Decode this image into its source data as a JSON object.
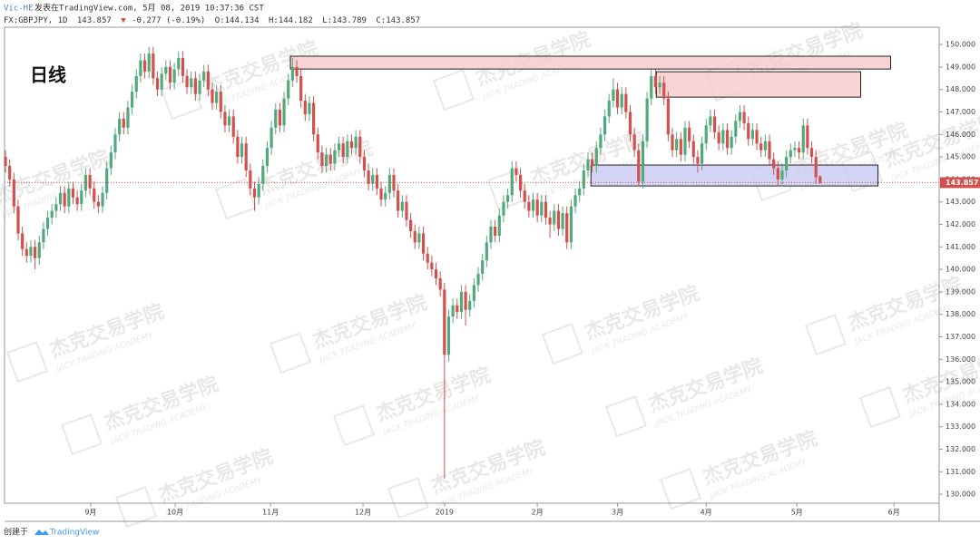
{
  "chart_data": {
    "type": "candlestick",
    "author": "Vic-HE",
    "published": "发表在TradingView.com, 5月 08, 2019 10:37:36 CST",
    "symbol": "FX:GBPJPY, 1D",
    "last_text": "143.857",
    "change_arrow": "▼",
    "change": "-0.277 (-0.19%)",
    "ohlc_text": [
      "O:144.134",
      "H:144.182",
      "L:143.789",
      "C:143.857"
    ],
    "annotation": "日线",
    "watermark": [
      "杰克交易学院",
      "JACK TRADING ACADEMY"
    ],
    "footer": "创建于",
    "footer_brand": "TradingView",
    "up_color": "#53a97c",
    "down_color": "#d2504d",
    "grid": false,
    "last_price": {
      "value": 143.857,
      "label": "143.857"
    },
    "xlim": [
      -1.3,
      221.2
    ],
    "ylim": [
      129.6,
      150.77
    ],
    "xticks": [
      {
        "value": 20.2,
        "label": "9月"
      },
      {
        "value": 40.2,
        "label": "10月"
      },
      {
        "value": 62.8,
        "label": "11月"
      },
      {
        "value": 84.7,
        "label": "12月"
      },
      {
        "value": 104,
        "label": "2019"
      },
      {
        "value": 126,
        "label": "2月"
      },
      {
        "value": 145,
        "label": "3月"
      },
      {
        "value": 166,
        "label": "4月"
      },
      {
        "value": 187.5,
        "label": "5月"
      },
      {
        "value": 210.5,
        "label": "6月"
      }
    ],
    "yticks": [
      {
        "value": 130,
        "label": "130.000"
      },
      {
        "value": 131,
        "label": "131.000"
      },
      {
        "value": 132,
        "label": "132.000"
      },
      {
        "value": 133,
        "label": "133.000"
      },
      {
        "value": 134,
        "label": "134.000"
      },
      {
        "value": 135,
        "label": "135.000"
      },
      {
        "value": 136,
        "label": "136.000"
      },
      {
        "value": 137,
        "label": "137.000"
      },
      {
        "value": 138,
        "label": "138.000"
      },
      {
        "value": 139,
        "label": "139.000"
      },
      {
        "value": 140,
        "label": "140.000"
      },
      {
        "value": 141,
        "label": "141.000"
      },
      {
        "value": 142,
        "label": "142.000"
      },
      {
        "value": 143,
        "label": "143.000"
      },
      {
        "value": 144,
        "label": "144.000"
      },
      {
        "value": 145,
        "label": "145.000"
      },
      {
        "value": 146,
        "label": "146.000"
      },
      {
        "value": 147,
        "label": "147.000"
      },
      {
        "value": 148,
        "label": "148.000"
      },
      {
        "value": 149,
        "label": "149.000"
      },
      {
        "value": 150,
        "label": "150.000"
      }
    ],
    "zones": [
      {
        "x": [
          67.5,
          209.7
        ],
        "y": [
          148.91,
          149.48
        ],
        "color": "#f9c9c9"
      },
      {
        "x": [
          154.2,
          202.6
        ],
        "y": [
          147.66,
          148.79
        ],
        "color": "#f9c9c9"
      },
      {
        "x": [
          138.7,
          206.7
        ],
        "y": [
          143.71,
          144.64
        ],
        "color": "#c9c9f5"
      }
    ],
    "ohlc": [
      [
        145.0,
        145.3,
        144.3,
        144.6
      ],
      [
        144.6,
        144.9,
        143.7,
        144.0
      ],
      [
        144.0,
        144.3,
        142.5,
        142.8
      ],
      [
        142.8,
        143.1,
        141.3,
        141.6
      ],
      [
        141.6,
        141.9,
        140.6,
        140.9
      ],
      [
        140.9,
        141.2,
        140.3,
        140.6
      ],
      [
        140.6,
        141.3,
        140.3,
        141.0
      ],
      [
        141.0,
        141.3,
        140.0,
        140.5
      ],
      [
        140.5,
        141.5,
        140.2,
        141.2
      ],
      [
        141.2,
        142.1,
        140.9,
        141.8
      ],
      [
        141.8,
        142.6,
        141.5,
        142.3
      ],
      [
        142.3,
        142.9,
        142.0,
        142.6
      ],
      [
        142.6,
        143.2,
        142.3,
        142.9
      ],
      [
        142.9,
        143.7,
        142.6,
        143.4
      ],
      [
        143.4,
        143.7,
        142.5,
        142.8
      ],
      [
        142.8,
        143.9,
        142.5,
        143.6
      ],
      [
        143.6,
        143.9,
        142.9,
        143.2
      ],
      [
        143.2,
        143.5,
        142.6,
        142.9
      ],
      [
        142.9,
        143.8,
        142.6,
        143.5
      ],
      [
        143.5,
        144.5,
        143.2,
        144.2
      ],
      [
        144.2,
        144.5,
        143.3,
        143.6
      ],
      [
        143.6,
        143.9,
        142.7,
        143.0
      ],
      [
        143.0,
        143.3,
        142.5,
        142.8
      ],
      [
        142.8,
        143.7,
        142.5,
        143.4
      ],
      [
        143.4,
        144.8,
        143.1,
        144.5
      ],
      [
        144.5,
        145.5,
        144.2,
        145.2
      ],
      [
        145.2,
        146.3,
        144.9,
        146.0
      ],
      [
        146.0,
        147.0,
        145.7,
        146.7
      ],
      [
        146.7,
        147.0,
        146.0,
        146.3
      ],
      [
        146.3,
        147.5,
        146.0,
        147.2
      ],
      [
        147.2,
        148.2,
        146.9,
        147.9
      ],
      [
        147.9,
        148.9,
        147.6,
        148.6
      ],
      [
        148.6,
        149.6,
        148.3,
        149.3
      ],
      [
        149.3,
        149.6,
        148.5,
        148.8
      ],
      [
        148.8,
        149.9,
        148.5,
        149.6
      ],
      [
        149.6,
        149.9,
        148.2,
        148.5
      ],
      [
        148.5,
        148.8,
        147.7,
        148.0
      ],
      [
        148.0,
        149.0,
        147.7,
        148.7
      ],
      [
        148.7,
        149.3,
        148.4,
        149.0
      ],
      [
        149.0,
        149.3,
        148.0,
        148.3
      ],
      [
        148.3,
        149.2,
        148.0,
        148.9
      ],
      [
        148.9,
        149.7,
        148.6,
        149.4
      ],
      [
        149.4,
        149.7,
        148.3,
        148.6
      ],
      [
        148.6,
        148.9,
        147.8,
        148.1
      ],
      [
        148.1,
        148.8,
        147.8,
        148.5
      ],
      [
        148.5,
        148.8,
        147.5,
        147.8
      ],
      [
        147.8,
        148.7,
        147.5,
        148.4
      ],
      [
        148.4,
        149.1,
        148.1,
        148.8
      ],
      [
        148.8,
        149.1,
        147.7,
        148.0
      ],
      [
        148.0,
        148.3,
        147.1,
        147.4
      ],
      [
        147.4,
        148.2,
        147.1,
        147.9
      ],
      [
        147.9,
        148.2,
        146.7,
        147.0
      ],
      [
        147.0,
        147.3,
        146.1,
        146.4
      ],
      [
        146.4,
        147.1,
        146.1,
        146.8
      ],
      [
        146.8,
        147.1,
        145.6,
        145.9
      ],
      [
        145.9,
        146.2,
        144.7,
        145.0
      ],
      [
        145.0,
        145.9,
        144.7,
        145.6
      ],
      [
        145.6,
        145.9,
        144.1,
        144.4
      ],
      [
        144.4,
        144.7,
        143.3,
        143.6
      ],
      [
        143.6,
        143.9,
        142.6,
        143.2
      ],
      [
        143.2,
        144.1,
        142.9,
        143.8
      ],
      [
        143.8,
        144.9,
        143.5,
        144.6
      ],
      [
        144.6,
        145.7,
        144.3,
        145.4
      ],
      [
        145.4,
        146.6,
        145.1,
        146.3
      ],
      [
        146.3,
        147.4,
        146.0,
        147.1
      ],
      [
        147.1,
        147.4,
        146.1,
        146.4
      ],
      [
        146.4,
        147.9,
        146.1,
        147.6
      ],
      [
        147.6,
        148.7,
        147.3,
        148.4
      ],
      [
        148.4,
        149.4,
        148.1,
        149.0
      ],
      [
        149.0,
        149.3,
        148.3,
        148.6
      ],
      [
        148.6,
        148.9,
        147.2,
        147.5
      ],
      [
        147.5,
        147.8,
        146.6,
        146.9
      ],
      [
        146.9,
        147.7,
        146.6,
        147.4
      ],
      [
        147.4,
        147.7,
        145.7,
        146.0
      ],
      [
        146.0,
        146.3,
        144.9,
        145.2
      ],
      [
        145.2,
        145.5,
        144.3,
        144.6
      ],
      [
        144.6,
        145.4,
        144.3,
        145.1
      ],
      [
        145.1,
        145.4,
        144.4,
        144.7
      ],
      [
        144.7,
        145.6,
        144.4,
        145.3
      ],
      [
        145.3,
        145.9,
        145.0,
        145.6
      ],
      [
        145.6,
        145.9,
        144.7,
        145.0
      ],
      [
        145.0,
        146.0,
        144.7,
        145.7
      ],
      [
        145.7,
        146.0,
        145.1,
        145.4
      ],
      [
        145.4,
        146.2,
        145.1,
        145.9
      ],
      [
        145.9,
        146.2,
        144.7,
        145.0
      ],
      [
        145.0,
        145.3,
        144.1,
        144.4
      ],
      [
        144.4,
        144.7,
        143.5,
        143.8
      ],
      [
        143.8,
        144.5,
        143.5,
        144.2
      ],
      [
        144.2,
        144.5,
        143.3,
        143.6
      ],
      [
        143.6,
        143.9,
        142.8,
        143.1
      ],
      [
        143.1,
        143.7,
        142.8,
        143.4
      ],
      [
        143.4,
        144.5,
        143.1,
        144.2
      ],
      [
        144.2,
        144.5,
        143.2,
        143.5
      ],
      [
        143.5,
        143.8,
        142.3,
        142.6
      ],
      [
        142.6,
        143.3,
        142.3,
        143.0
      ],
      [
        143.0,
        143.3,
        141.9,
        142.2
      ],
      [
        142.2,
        142.5,
        141.4,
        141.7
      ],
      [
        141.7,
        142.0,
        140.9,
        141.2
      ],
      [
        141.2,
        141.9,
        140.9,
        141.6
      ],
      [
        141.6,
        141.9,
        140.4,
        140.7
      ],
      [
        140.7,
        141.0,
        140.0,
        140.3
      ],
      [
        140.3,
        140.6,
        139.7,
        140.0
      ],
      [
        140.0,
        140.3,
        139.3,
        139.6
      ],
      [
        139.6,
        139.9,
        138.8,
        139.1
      ],
      [
        139.1,
        139.4,
        130.7,
        136.2
      ],
      [
        136.2,
        138.2,
        135.9,
        137.9
      ],
      [
        137.9,
        138.7,
        137.6,
        138.4
      ],
      [
        138.4,
        138.7,
        137.8,
        138.1
      ],
      [
        138.1,
        139.3,
        137.8,
        139.0
      ],
      [
        139.0,
        139.3,
        137.5,
        138.2
      ],
      [
        138.2,
        138.9,
        137.9,
        138.6
      ],
      [
        138.6,
        139.6,
        138.3,
        139.3
      ],
      [
        139.3,
        140.1,
        139.0,
        139.8
      ],
      [
        139.8,
        140.7,
        139.5,
        140.4
      ],
      [
        140.4,
        141.5,
        140.1,
        141.2
      ],
      [
        141.2,
        142.2,
        140.9,
        141.9
      ],
      [
        141.9,
        142.2,
        141.2,
        141.5
      ],
      [
        141.5,
        142.7,
        141.2,
        142.4
      ],
      [
        142.4,
        143.3,
        142.1,
        143.0
      ],
      [
        143.0,
        143.6,
        142.7,
        143.3
      ],
      [
        143.3,
        144.8,
        143.0,
        144.5
      ],
      [
        144.5,
        144.8,
        143.9,
        144.2
      ],
      [
        144.2,
        144.5,
        143.2,
        143.5
      ],
      [
        143.5,
        143.8,
        142.7,
        143.0
      ],
      [
        143.0,
        143.3,
        142.3,
        142.6
      ],
      [
        142.6,
        143.4,
        142.3,
        143.1
      ],
      [
        143.1,
        143.4,
        142.1,
        142.4
      ],
      [
        142.4,
        143.3,
        142.1,
        143.0
      ],
      [
        143.0,
        143.3,
        142.0,
        142.3
      ],
      [
        142.3,
        142.6,
        141.4,
        142.0
      ],
      [
        142.0,
        142.9,
        141.7,
        142.6
      ],
      [
        142.6,
        142.9,
        141.5,
        141.8
      ],
      [
        141.8,
        142.8,
        141.5,
        142.5
      ],
      [
        142.5,
        142.8,
        140.9,
        141.2
      ],
      [
        141.2,
        143.1,
        140.9,
        142.8
      ],
      [
        142.8,
        143.6,
        142.5,
        143.3
      ],
      [
        143.3,
        143.9,
        143.0,
        143.6
      ],
      [
        143.6,
        144.7,
        143.3,
        144.4
      ],
      [
        144.4,
        145.2,
        144.1,
        144.9
      ],
      [
        144.9,
        145.2,
        144.3,
        144.6
      ],
      [
        144.6,
        145.7,
        144.3,
        145.4
      ],
      [
        145.4,
        146.3,
        145.1,
        146.0
      ],
      [
        146.0,
        147.1,
        145.7,
        146.8
      ],
      [
        146.8,
        147.8,
        146.5,
        147.5
      ],
      [
        147.5,
        148.5,
        147.2,
        148.0
      ],
      [
        148.0,
        148.3,
        146.9,
        147.2
      ],
      [
        147.2,
        148.1,
        146.9,
        147.8
      ],
      [
        147.8,
        148.1,
        146.7,
        147.0
      ],
      [
        147.0,
        147.3,
        145.7,
        146.0
      ],
      [
        146.0,
        146.3,
        145.0,
        145.3
      ],
      [
        145.3,
        145.6,
        143.7,
        143.9
      ],
      [
        143.9,
        146.0,
        143.6,
        145.7
      ],
      [
        145.7,
        147.9,
        145.4,
        147.6
      ],
      [
        147.6,
        148.9,
        147.3,
        148.6
      ],
      [
        148.6,
        148.9,
        147.8,
        148.1
      ],
      [
        148.1,
        148.6,
        147.8,
        148.3
      ],
      [
        148.3,
        148.6,
        147.3,
        147.6
      ],
      [
        147.6,
        147.9,
        145.7,
        146.0
      ],
      [
        146.0,
        146.3,
        145.0,
        145.3
      ],
      [
        145.3,
        146.1,
        145.0,
        145.8
      ],
      [
        145.8,
        146.1,
        144.8,
        145.1
      ],
      [
        145.1,
        146.6,
        144.8,
        146.3
      ],
      [
        146.3,
        146.6,
        145.4,
        145.7
      ],
      [
        145.7,
        146.0,
        144.7,
        145.0
      ],
      [
        145.0,
        145.3,
        144.3,
        144.7
      ],
      [
        144.7,
        145.9,
        144.4,
        145.6
      ],
      [
        145.6,
        146.7,
        145.3,
        146.4
      ],
      [
        146.4,
        147.1,
        146.1,
        146.8
      ],
      [
        146.8,
        147.1,
        145.8,
        146.1
      ],
      [
        146.1,
        146.4,
        145.3,
        145.6
      ],
      [
        145.6,
        146.5,
        145.3,
        146.2
      ],
      [
        146.2,
        146.5,
        145.1,
        145.4
      ],
      [
        145.4,
        146.2,
        145.1,
        145.9
      ],
      [
        145.9,
        146.9,
        145.6,
        146.6
      ],
      [
        146.6,
        147.3,
        146.3,
        147.0
      ],
      [
        147.0,
        147.3,
        146.2,
        146.5
      ],
      [
        146.5,
        146.8,
        145.5,
        145.8
      ],
      [
        145.8,
        146.5,
        145.5,
        146.2
      ],
      [
        146.2,
        146.5,
        145.3,
        145.6
      ],
      [
        145.6,
        145.9,
        145.0,
        145.3
      ],
      [
        145.3,
        146.0,
        145.0,
        145.7
      ],
      [
        145.7,
        146.0,
        144.6,
        144.9
      ],
      [
        144.9,
        145.2,
        144.2,
        144.5
      ],
      [
        144.5,
        144.8,
        143.7,
        144.0
      ],
      [
        144.0,
        144.7,
        143.7,
        144.4
      ],
      [
        144.4,
        145.3,
        144.1,
        145.0
      ],
      [
        145.0,
        145.6,
        144.7,
        145.3
      ],
      [
        145.3,
        145.7,
        145.0,
        145.4
      ],
      [
        145.4,
        145.7,
        144.9,
        145.2
      ],
      [
        145.2,
        146.7,
        144.9,
        146.4
      ],
      [
        146.4,
        146.7,
        145.1,
        145.4
      ],
      [
        145.4,
        145.7,
        144.7,
        145.0
      ],
      [
        145.0,
        145.3,
        143.8,
        144.1
      ],
      [
        144.134,
        144.182,
        143.789,
        143.857
      ]
    ]
  }
}
